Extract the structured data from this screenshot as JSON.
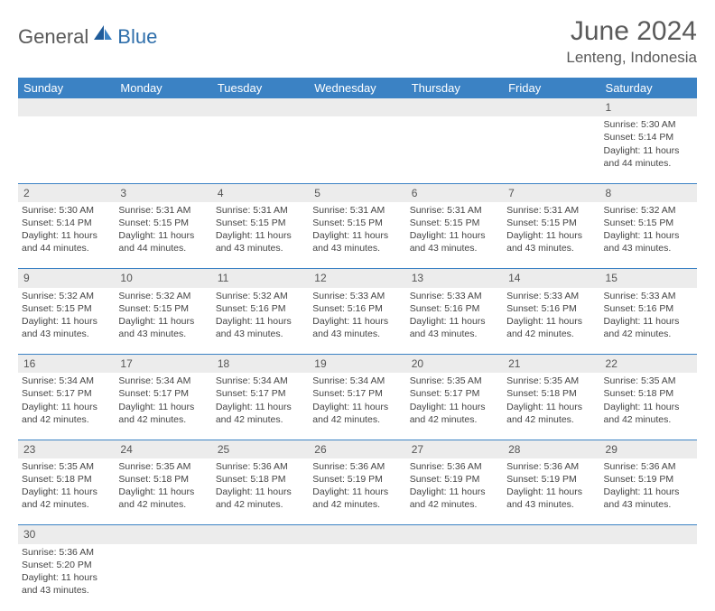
{
  "brand": {
    "part1": "General",
    "part2": "Blue"
  },
  "title": "June 2024",
  "location": "Lenteng, Indonesia",
  "colors": {
    "header_bg": "#3b82c4",
    "header_text": "#ffffff",
    "daynum_bg": "#ececec",
    "border": "#3b82c4",
    "title_color": "#5a5a5a",
    "brand_gray": "#5a5a5a",
    "brand_blue": "#2f6fab"
  },
  "day_headers": [
    "Sunday",
    "Monday",
    "Tuesday",
    "Wednesday",
    "Thursday",
    "Friday",
    "Saturday"
  ],
  "weeks": [
    {
      "nums": [
        "",
        "",
        "",
        "",
        "",
        "",
        "1"
      ],
      "cells": [
        null,
        null,
        null,
        null,
        null,
        null,
        {
          "sunrise": "5:30 AM",
          "sunset": "5:14 PM",
          "daylight": "11 hours and 44 minutes."
        }
      ]
    },
    {
      "nums": [
        "2",
        "3",
        "4",
        "5",
        "6",
        "7",
        "8"
      ],
      "cells": [
        {
          "sunrise": "5:30 AM",
          "sunset": "5:14 PM",
          "daylight": "11 hours and 44 minutes."
        },
        {
          "sunrise": "5:31 AM",
          "sunset": "5:15 PM",
          "daylight": "11 hours and 44 minutes."
        },
        {
          "sunrise": "5:31 AM",
          "sunset": "5:15 PM",
          "daylight": "11 hours and 43 minutes."
        },
        {
          "sunrise": "5:31 AM",
          "sunset": "5:15 PM",
          "daylight": "11 hours and 43 minutes."
        },
        {
          "sunrise": "5:31 AM",
          "sunset": "5:15 PM",
          "daylight": "11 hours and 43 minutes."
        },
        {
          "sunrise": "5:31 AM",
          "sunset": "5:15 PM",
          "daylight": "11 hours and 43 minutes."
        },
        {
          "sunrise": "5:32 AM",
          "sunset": "5:15 PM",
          "daylight": "11 hours and 43 minutes."
        }
      ]
    },
    {
      "nums": [
        "9",
        "10",
        "11",
        "12",
        "13",
        "14",
        "15"
      ],
      "cells": [
        {
          "sunrise": "5:32 AM",
          "sunset": "5:15 PM",
          "daylight": "11 hours and 43 minutes."
        },
        {
          "sunrise": "5:32 AM",
          "sunset": "5:15 PM",
          "daylight": "11 hours and 43 minutes."
        },
        {
          "sunrise": "5:32 AM",
          "sunset": "5:16 PM",
          "daylight": "11 hours and 43 minutes."
        },
        {
          "sunrise": "5:33 AM",
          "sunset": "5:16 PM",
          "daylight": "11 hours and 43 minutes."
        },
        {
          "sunrise": "5:33 AM",
          "sunset": "5:16 PM",
          "daylight": "11 hours and 43 minutes."
        },
        {
          "sunrise": "5:33 AM",
          "sunset": "5:16 PM",
          "daylight": "11 hours and 42 minutes."
        },
        {
          "sunrise": "5:33 AM",
          "sunset": "5:16 PM",
          "daylight": "11 hours and 42 minutes."
        }
      ]
    },
    {
      "nums": [
        "16",
        "17",
        "18",
        "19",
        "20",
        "21",
        "22"
      ],
      "cells": [
        {
          "sunrise": "5:34 AM",
          "sunset": "5:17 PM",
          "daylight": "11 hours and 42 minutes."
        },
        {
          "sunrise": "5:34 AM",
          "sunset": "5:17 PM",
          "daylight": "11 hours and 42 minutes."
        },
        {
          "sunrise": "5:34 AM",
          "sunset": "5:17 PM",
          "daylight": "11 hours and 42 minutes."
        },
        {
          "sunrise": "5:34 AM",
          "sunset": "5:17 PM",
          "daylight": "11 hours and 42 minutes."
        },
        {
          "sunrise": "5:35 AM",
          "sunset": "5:17 PM",
          "daylight": "11 hours and 42 minutes."
        },
        {
          "sunrise": "5:35 AM",
          "sunset": "5:18 PM",
          "daylight": "11 hours and 42 minutes."
        },
        {
          "sunrise": "5:35 AM",
          "sunset": "5:18 PM",
          "daylight": "11 hours and 42 minutes."
        }
      ]
    },
    {
      "nums": [
        "23",
        "24",
        "25",
        "26",
        "27",
        "28",
        "29"
      ],
      "cells": [
        {
          "sunrise": "5:35 AM",
          "sunset": "5:18 PM",
          "daylight": "11 hours and 42 minutes."
        },
        {
          "sunrise": "5:35 AM",
          "sunset": "5:18 PM",
          "daylight": "11 hours and 42 minutes."
        },
        {
          "sunrise": "5:36 AM",
          "sunset": "5:18 PM",
          "daylight": "11 hours and 42 minutes."
        },
        {
          "sunrise": "5:36 AM",
          "sunset": "5:19 PM",
          "daylight": "11 hours and 42 minutes."
        },
        {
          "sunrise": "5:36 AM",
          "sunset": "5:19 PM",
          "daylight": "11 hours and 42 minutes."
        },
        {
          "sunrise": "5:36 AM",
          "sunset": "5:19 PM",
          "daylight": "11 hours and 43 minutes."
        },
        {
          "sunrise": "5:36 AM",
          "sunset": "5:19 PM",
          "daylight": "11 hours and 43 minutes."
        }
      ]
    },
    {
      "nums": [
        "30",
        "",
        "",
        "",
        "",
        "",
        ""
      ],
      "cells": [
        {
          "sunrise": "5:36 AM",
          "sunset": "5:20 PM",
          "daylight": "11 hours and 43 minutes."
        },
        null,
        null,
        null,
        null,
        null,
        null
      ]
    }
  ],
  "labels": {
    "sunrise": "Sunrise: ",
    "sunset": "Sunset: ",
    "daylight": "Daylight: "
  }
}
